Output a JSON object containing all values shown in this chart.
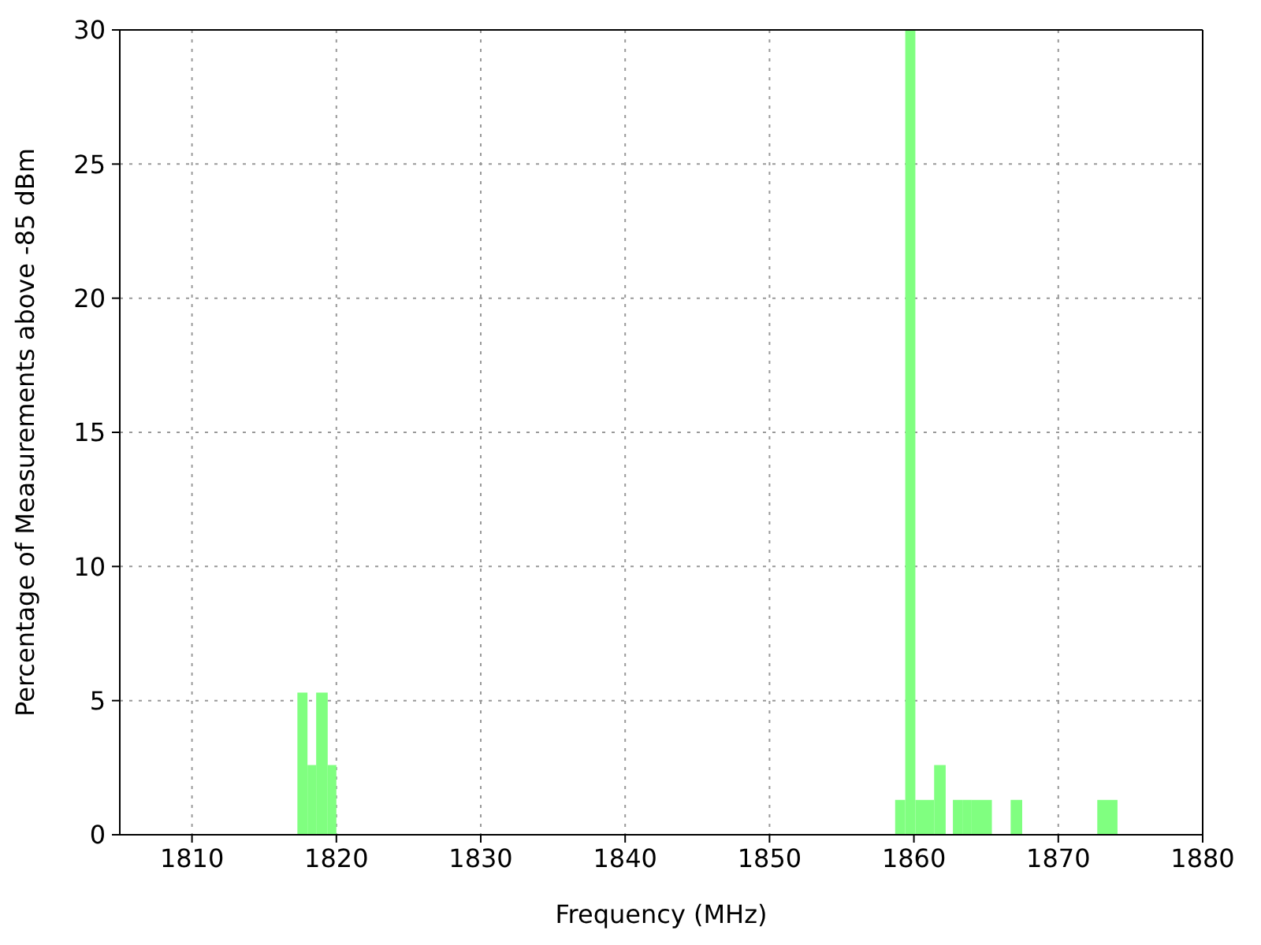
{
  "chart_data": {
    "type": "histogram",
    "xlabel": "Frequency (MHz)",
    "ylabel": "Percentage of Measurements above -85 dBm",
    "bins": [
      1817.3,
      1818.0,
      1818.6,
      1819.4,
      1820.0,
      1858.7,
      1859.4,
      1860.1,
      1861.4,
      1862.2,
      1862.7,
      1863.4,
      1864.0,
      1865.4,
      1866.7,
      1867.5,
      1872.7,
      1874.1
    ],
    "values": [
      5.3,
      2.6,
      5.3,
      2.6,
      0,
      1.3,
      30,
      1.3,
      2.6,
      0,
      1.3,
      1.3,
      1.3,
      0,
      1.3,
      0,
      1.3
    ],
    "color": "#80ff80",
    "xlim": [
      1805,
      1880
    ],
    "xticks": [
      1810,
      1820,
      1830,
      1840,
      1850,
      1860,
      1870,
      1880
    ],
    "ylim": [
      0,
      30
    ],
    "yticks": [
      0,
      5,
      10,
      15,
      20,
      25,
      30
    ],
    "grid": true
  }
}
